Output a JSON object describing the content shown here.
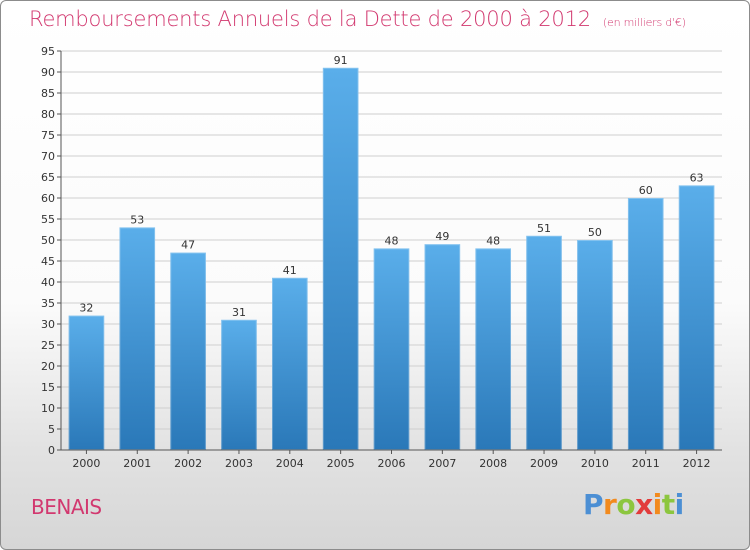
{
  "header": {
    "title": "Remboursements Annuels de la Dette de 2000 à 2012",
    "unit": "(en milliers d'€)"
  },
  "footer": {
    "commune": "BENAIS",
    "logo_text": "Proxiti"
  },
  "colors": {
    "title": "#d2386f",
    "bar_top": "#5aaeea",
    "bar_bottom": "#2a78b8",
    "grid": "#cfcfcf",
    "axis": "#555555"
  },
  "chart_data": {
    "type": "bar",
    "title": "Remboursements Annuels de la Dette de 2000 à 2012",
    "xlabel": "",
    "ylabel": "",
    "categories": [
      "2000",
      "2001",
      "2002",
      "2003",
      "2004",
      "2005",
      "2006",
      "2007",
      "2008",
      "2009",
      "2010",
      "2011",
      "2012"
    ],
    "values": [
      32,
      53,
      47,
      31,
      41,
      91,
      48,
      49,
      48,
      51,
      50,
      60,
      63
    ],
    "ylim": [
      0,
      95
    ],
    "ytick_step": 5,
    "grid": true,
    "data_labels": true,
    "legend": "none"
  }
}
